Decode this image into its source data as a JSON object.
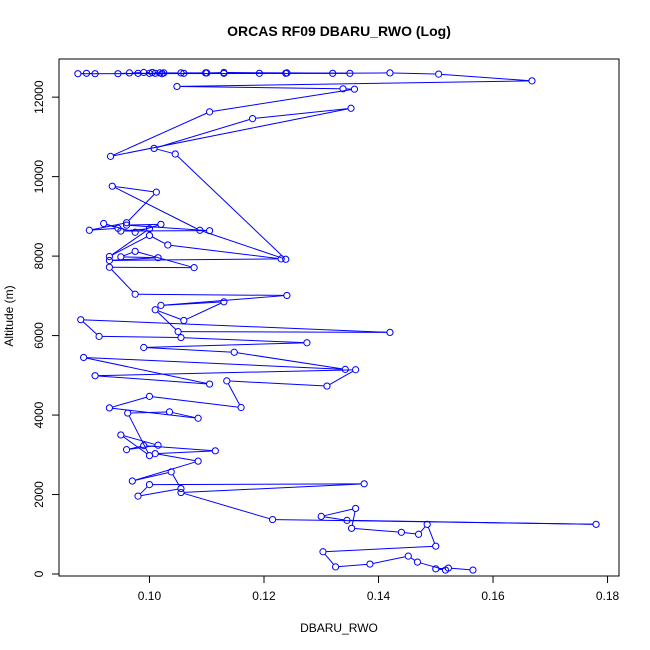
{
  "chart_data": {
    "type": "line",
    "title": "ORCAS RF09 DBARU_RWO (Log)",
    "xlabel": "DBARU_RWO",
    "ylabel": "Altitude (m)",
    "xlim": [
      0.0842,
      0.182
    ],
    "ylim": [
      -50,
      12960
    ],
    "xticks": [
      0.1,
      0.12,
      0.14,
      0.16,
      0.18
    ],
    "yticks": [
      0,
      2000,
      4000,
      6000,
      8000,
      10000,
      12000
    ],
    "grid": false,
    "legend": "none",
    "marker": "open-circle",
    "color": "#0000ff",
    "series": [
      {
        "x": [
          0.1565,
          0.1522,
          0.15,
          0.1517,
          0.1468,
          0.1452,
          0.1385,
          0.1325,
          0.1303,
          0.15,
          0.1485,
          0.147,
          0.144,
          0.1353,
          0.136,
          0.13,
          0.1345,
          0.178,
          0.1215,
          0.1055,
          0.1375,
          0.1,
          0.098,
          0.1055,
          0.1038,
          0.097,
          0.1085,
          0.101,
          0.1115,
          0.099,
          0.096,
          0.1015,
          0.095,
          0.1,
          0.0962,
          0.1035,
          0.1085,
          0.093,
          0.1,
          0.116,
          0.1135,
          0.131,
          0.136,
          0.0905,
          0.1105,
          0.0885,
          0.1342,
          0.1148,
          0.099,
          0.1275,
          0.1055,
          0.0912,
          0.088,
          0.142,
          0.105,
          0.101,
          0.106,
          0.113,
          0.102,
          0.124,
          0.0975,
          0.093,
          0.1078,
          0.0975,
          0.095,
          0.1015,
          0.093,
          0.123,
          0.1032,
          0.1,
          0.093,
          0.1,
          0.095,
          0.1105,
          0.096,
          0.102,
          0.0975,
          0.092,
          0.0945,
          0.0895,
          0.096,
          0.1012,
          0.0935,
          0.1088,
          0.1238,
          0.1045,
          0.1008,
          0.118,
          0.1352,
          0.0932,
          0.1105,
          0.1358,
          0.1338,
          0.1048,
          0.1668,
          0.1505,
          0.142,
          0.132,
          0.1238,
          0.1192,
          0.113,
          0.1098,
          0.1055,
          0.1018,
          0.1005,
          0.099,
          0.0965,
          0.0945,
          0.098,
          0.101,
          0.1022,
          0.1025,
          0.1,
          0.106,
          0.11,
          0.113,
          0.124,
          0.135,
          0.0875,
          0.089,
          0.0905
        ],
        "y": [
          100,
          150,
          130,
          100,
          300,
          450,
          250,
          180,
          560,
          700,
          1250,
          1000,
          1050,
          1150,
          1650,
          1450,
          1350,
          1250,
          1370,
          2050,
          2270,
          2250,
          1960,
          2150,
          2570,
          2340,
          2840,
          3030,
          3100,
          3230,
          3130,
          3240,
          3500,
          2980,
          4050,
          4080,
          3920,
          4180,
          4470,
          4190,
          4860,
          4730,
          5140,
          4990,
          4780,
          5450,
          5150,
          5580,
          5700,
          5820,
          5950,
          5980,
          6400,
          6080,
          6100,
          6650,
          6380,
          6850,
          6760,
          7010,
          7040,
          7720,
          7710,
          8120,
          7980,
          7960,
          7890,
          7930,
          8280,
          8520,
          7990,
          8690,
          8630,
          8640,
          8780,
          8800,
          8600,
          8820,
          8700,
          8650,
          8840,
          9610,
          9760,
          8650,
          7920,
          10570,
          10710,
          11460,
          11720,
          10510,
          11630,
          12200,
          12210,
          12270,
          12410,
          12580,
          12610,
          12600,
          12600,
          12600,
          12600,
          12610,
          12610,
          12610,
          12620,
          12620,
          12610,
          12590,
          12600,
          12600,
          12590,
          12610,
          12600,
          12600,
          12610,
          12620,
          12610,
          12600,
          12590,
          12600,
          12590
        ]
      }
    ]
  }
}
